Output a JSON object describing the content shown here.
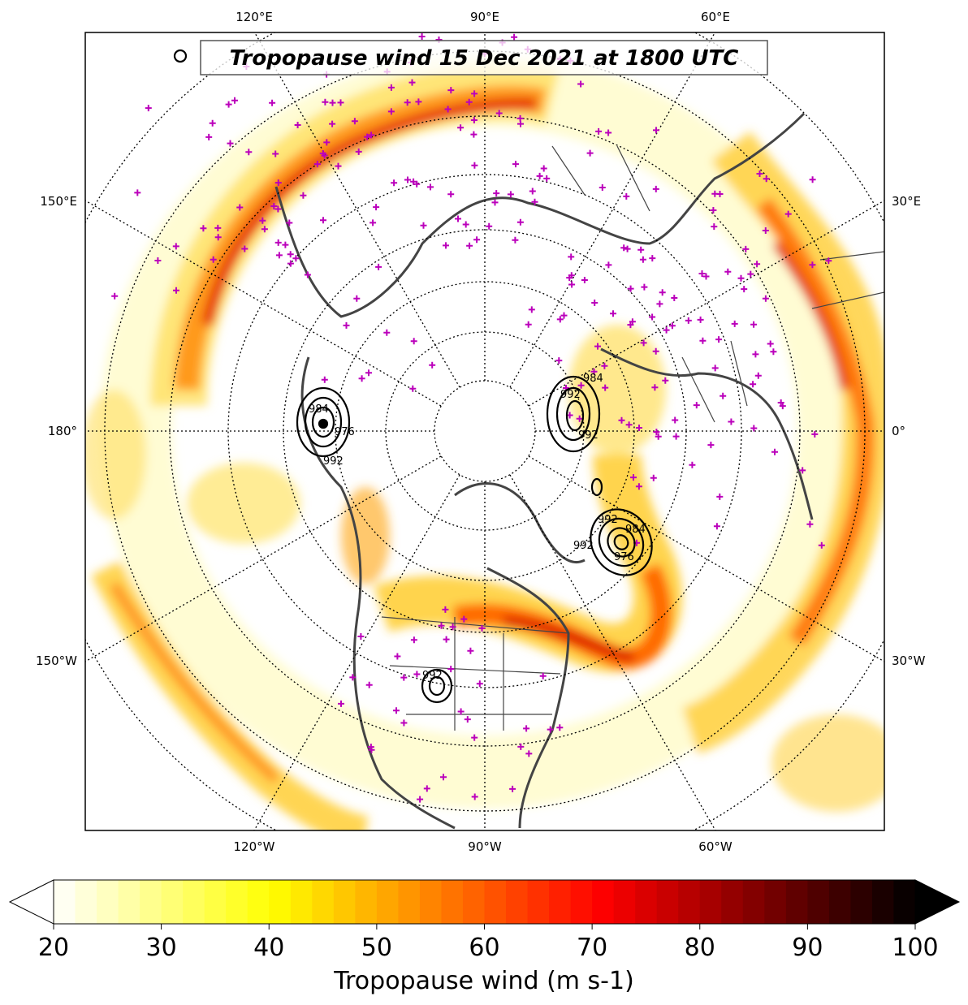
{
  "title": "Tropopause wind 15 Dec 2021 at 1800 UTC",
  "projection": "north-polar-stereographic",
  "colors": {
    "coast": "#444444",
    "border": "#444444",
    "grid": "#000000",
    "stations": "#bb00bb",
    "contours": "#000000"
  },
  "longitude_labels": {
    "top": [
      "120°E",
      "90°E",
      "60°E"
    ],
    "bottom": [
      "120°W",
      "90°W",
      "60°W"
    ],
    "left": [
      "150°E",
      "180°",
      "150°W"
    ],
    "right": [
      "30°E",
      "0°",
      "30°W"
    ]
  },
  "contour_labels": [
    "992",
    "984",
    "976",
    "992",
    "992",
    "984",
    "992",
    "992",
    "976",
    "984",
    "992"
  ],
  "colorbar": {
    "label": "Tropopause wind (m s-1)",
    "min": 20,
    "max": 100,
    "ticks": [
      "20",
      "30",
      "40",
      "50",
      "60",
      "70",
      "80",
      "90",
      "100"
    ],
    "extend": "both",
    "colormap": "hot_r"
  }
}
